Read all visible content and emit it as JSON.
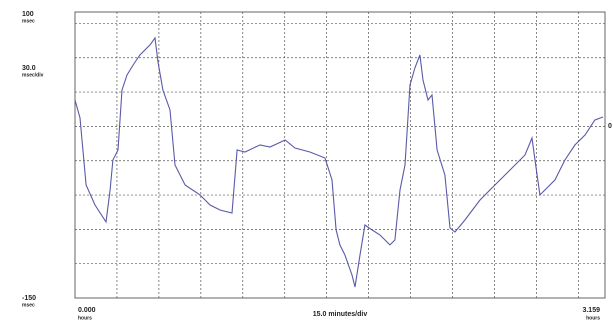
{
  "chart_data": {
    "type": "line",
    "xlim": [
      0,
      3.159
    ],
    "ylim": [
      -150,
      100
    ],
    "xticks": [
      {
        "value": 0,
        "label": "0.000"
      },
      {
        "value": 3.159,
        "label": "3.159"
      }
    ],
    "yticks": [
      {
        "value": 100,
        "label": "100"
      },
      {
        "value": -150,
        "label": "-150"
      }
    ],
    "x_unit": "hours",
    "y_unit": "msec",
    "x_scale": {
      "value": 15,
      "label": "15.0 minutes/div"
    },
    "y_scale": {
      "value": 30,
      "label": "30.0"
    },
    "y_scale_unit": "msec/div",
    "zero_marker": {
      "value": 0,
      "label": "0"
    },
    "grid": true,
    "series": [
      {
        "color": "#5a5aa8",
        "x": [
          0,
          0.03,
          0.066,
          0.119,
          0.185,
          0.209,
          0.226,
          0.256,
          0.28,
          0.31,
          0.346,
          0.387,
          0.447,
          0.477,
          0.495,
          0.524,
          0.566,
          0.596,
          0.656,
          0.745,
          0.805,
          0.864,
          0.936,
          0.966,
          1.013,
          1.103,
          1.162,
          1.252,
          1.311,
          1.4,
          1.49,
          1.532,
          1.556,
          1.579,
          1.609,
          1.651,
          1.669,
          1.699,
          1.728,
          1.77,
          1.818,
          1.877,
          1.907,
          1.937,
          1.967,
          1.997,
          2.026,
          2.056,
          2.074,
          2.104,
          2.128,
          2.158,
          2.205,
          2.235,
          2.265,
          2.324,
          2.414,
          2.503,
          2.593,
          2.682,
          2.724,
          2.742,
          2.771,
          2.801,
          2.861,
          2.92,
          2.98,
          3.04,
          3.099,
          3.147
        ],
        "values": [
          23.1,
          7.4,
          -51.2,
          -68.7,
          -83.5,
          -55.6,
          -29.4,
          -20.6,
          31.8,
          44.9,
          53.7,
          62.4,
          71.2,
          77.3,
          56.3,
          31.8,
          14.3,
          -33.7,
          -51.2,
          -59.9,
          -68.7,
          -73.1,
          -75.7,
          -20.6,
          -22.4,
          -16.2,
          -18.0,
          -11.9,
          -18.9,
          -22.4,
          -27.6,
          -46.8,
          -90.5,
          -103.6,
          -112.4,
          -129.9,
          -140.4,
          -112.4,
          -86.2,
          -90.5,
          -94.9,
          -103.6,
          -99.3,
          -55.6,
          -33.7,
          36.2,
          51.1,
          62.4,
          40.6,
          23.1,
          27.5,
          -20.6,
          -42.5,
          -88.8,
          -92.3,
          -81.8,
          -64.3,
          -51.2,
          -38.1,
          -25.0,
          -10.1,
          -29.4,
          -59.9,
          -55.6,
          -46.8,
          -29.4,
          -16.2,
          -7.5,
          5.6,
          8.2
        ]
      }
    ]
  }
}
